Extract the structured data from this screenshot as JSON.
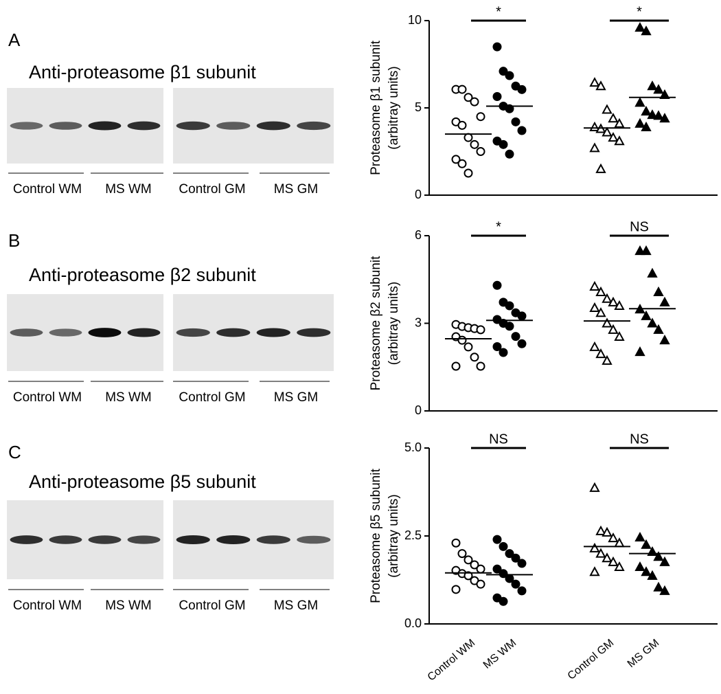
{
  "chart_data": [
    {
      "type": "dotplot",
      "panel": "A",
      "blot_title": "Anti-proteasome β1 subunit",
      "lane_labels": [
        "Control WM",
        "MS WM",
        "Control GM",
        "MS GM"
      ],
      "ylabel": [
        "Proteasome β1 subunit",
        "(arbitray units)"
      ],
      "ylim": [
        0,
        10
      ],
      "yticks": [
        0,
        5,
        10
      ],
      "markers": [
        "open-circle",
        "filled-circle",
        "open-triangle",
        "filled-triangle"
      ],
      "groups": [
        {
          "values": [
            6.06,
            6.06,
            5.6,
            5.35,
            4.5,
            4.2,
            4.0,
            3.3,
            2.9,
            2.5,
            2.05,
            1.8,
            1.26
          ]
        },
        {
          "values": [
            8.5,
            7.1,
            6.85,
            6.25,
            6.05,
            5.65,
            5.1,
            4.95,
            4.2,
            3.7,
            3.1,
            2.9,
            2.35
          ]
        },
        {
          "values": [
            6.45,
            6.25,
            4.9,
            4.4,
            4.1,
            3.9,
            3.8,
            3.6,
            3.3,
            3.1,
            2.7,
            1.5
          ]
        },
        {
          "values": [
            9.6,
            9.4,
            6.25,
            6.05,
            5.75,
            5.3,
            4.8,
            4.6,
            4.55,
            4.4,
            4.1,
            3.9
          ]
        }
      ],
      "means": [
        3.5,
        5.1,
        3.85,
        5.6
      ],
      "annotations": [
        {
          "text": "*",
          "from": 0,
          "to": 1
        },
        {
          "text": "*",
          "from": 2,
          "to": 3
        }
      ]
    },
    {
      "type": "dotplot",
      "panel": "B",
      "blot_title": "Anti-proteasome β2 subunit",
      "lane_labels": [
        "Control WM",
        "MS WM",
        "Control GM",
        "MS GM"
      ],
      "ylabel": [
        "Proteasome β2 subunit",
        "(arbitray units)"
      ],
      "ylim": [
        0,
        6
      ],
      "yticks": [
        0,
        3,
        6
      ],
      "markers": [
        "open-circle",
        "filled-circle",
        "open-triangle",
        "filled-triangle"
      ],
      "groups": [
        {
          "values": [
            2.96,
            2.89,
            2.85,
            2.82,
            2.78,
            2.54,
            2.42,
            2.19,
            1.84,
            1.53,
            1.53
          ]
        },
        {
          "values": [
            4.3,
            3.72,
            3.6,
            3.36,
            3.25,
            3.13,
            3.0,
            2.9,
            2.55,
            2.3,
            2.2,
            2.0
          ]
        },
        {
          "values": [
            4.26,
            4.07,
            3.84,
            3.72,
            3.6,
            3.53,
            3.36,
            3.0,
            2.78,
            2.54,
            2.19,
            1.95,
            1.72
          ]
        },
        {
          "values": [
            5.48,
            5.48,
            4.71,
            4.07,
            3.72,
            3.48,
            3.25,
            3.0,
            2.78,
            2.42,
            2.02
          ]
        }
      ],
      "means": [
        2.47,
        3.1,
        3.08,
        3.5
      ],
      "annotations": [
        {
          "text": "*",
          "from": 0,
          "to": 1
        },
        {
          "text": "NS",
          "from": 2,
          "to": 3
        }
      ]
    },
    {
      "type": "dotplot",
      "panel": "C",
      "blot_title": "Anti-proteasome β5 subunit",
      "lane_labels": [
        "Control WM",
        "MS WM",
        "Control GM",
        "MS GM"
      ],
      "ylabel": [
        "Proteasome β5 subunit",
        "(arbitray units)"
      ],
      "ylim": [
        0,
        5
      ],
      "yticks": [
        {
          "value": 0,
          "label": "0.0"
        },
        2.5,
        {
          "value": 5,
          "label": "5.0"
        }
      ],
      "categories": [
        "Control WM",
        "MS WM",
        "Control GM",
        "MS GM"
      ],
      "markers": [
        "open-circle",
        "filled-circle",
        "open-triangle",
        "filled-triangle"
      ],
      "groups": [
        {
          "values": [
            2.3,
            2.0,
            1.82,
            1.68,
            1.56,
            1.52,
            1.43,
            1.37,
            1.23,
            1.13,
            0.98
          ]
        },
        {
          "values": [
            2.4,
            2.2,
            2.0,
            1.87,
            1.72,
            1.56,
            1.43,
            1.29,
            1.13,
            0.94,
            0.74,
            0.64
          ]
        },
        {
          "values": [
            3.87,
            2.64,
            2.6,
            2.44,
            2.3,
            2.15,
            2.0,
            1.87,
            1.76,
            1.62,
            1.48
          ]
        },
        {
          "values": [
            2.46,
            2.25,
            2.05,
            1.91,
            1.76,
            1.62,
            1.48,
            1.37,
            1.04,
            0.94
          ]
        }
      ],
      "means": [
        1.45,
        1.4,
        2.2,
        2.0
      ],
      "annotations": [
        {
          "text": "NS",
          "from": 0,
          "to": 1
        },
        {
          "text": "NS",
          "from": 2,
          "to": 3
        }
      ]
    }
  ]
}
